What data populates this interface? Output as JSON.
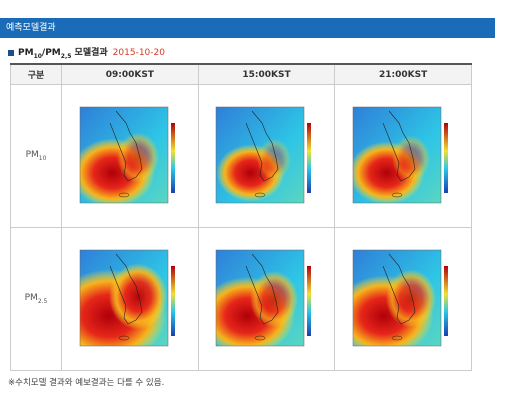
{
  "header": {
    "title": "예측모델결과"
  },
  "subtitle": {
    "parts": [
      "PM",
      "10",
      "/PM",
      "2,5",
      " 모델결과"
    ],
    "date": "2015-10-20"
  },
  "table": {
    "columns": [
      "구분",
      "09:00KST",
      "15:00KST",
      "21:00KST"
    ],
    "rows": [
      {
        "base": "PM",
        "sub": "10"
      },
      {
        "base": "PM",
        "sub": "2.5"
      }
    ]
  },
  "note": "※수치모델 결과와 예보결과는 다를 수 있음."
}
